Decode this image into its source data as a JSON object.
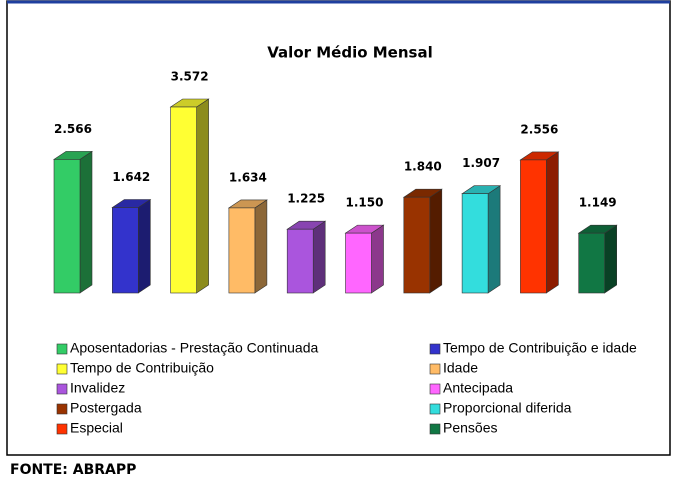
{
  "chart_data": {
    "type": "bar3d",
    "title": "Valor Médio Mensal",
    "categories": [
      "Aposentadorias - Prestação Continuada",
      "Tempo de Contribuição e idade",
      "Tempo de Contribuição",
      "Idade",
      "Invalidez",
      "Antecipada",
      "Postergada",
      "Proporcional diferida",
      "Especial",
      "Pensões"
    ],
    "values": [
      2566,
      1642,
      3572,
      1634,
      1225,
      1150,
      1840,
      1907,
      2556,
      1149
    ],
    "value_labels": [
      "2.566",
      "1.642",
      "3.572",
      "1.634",
      "1.225",
      "1.150",
      "1.840",
      "1.907",
      "2.556",
      "1.149"
    ],
    "colors": [
      "#33cc66",
      "#3333cc",
      "#ffff33",
      "#ffbb66",
      "#aa55dd",
      "#ff66ff",
      "#993300",
      "#33dddd",
      "#ff3300",
      "#117744"
    ],
    "legend": "bottom",
    "source": "FONTE: ABRAPP"
  }
}
